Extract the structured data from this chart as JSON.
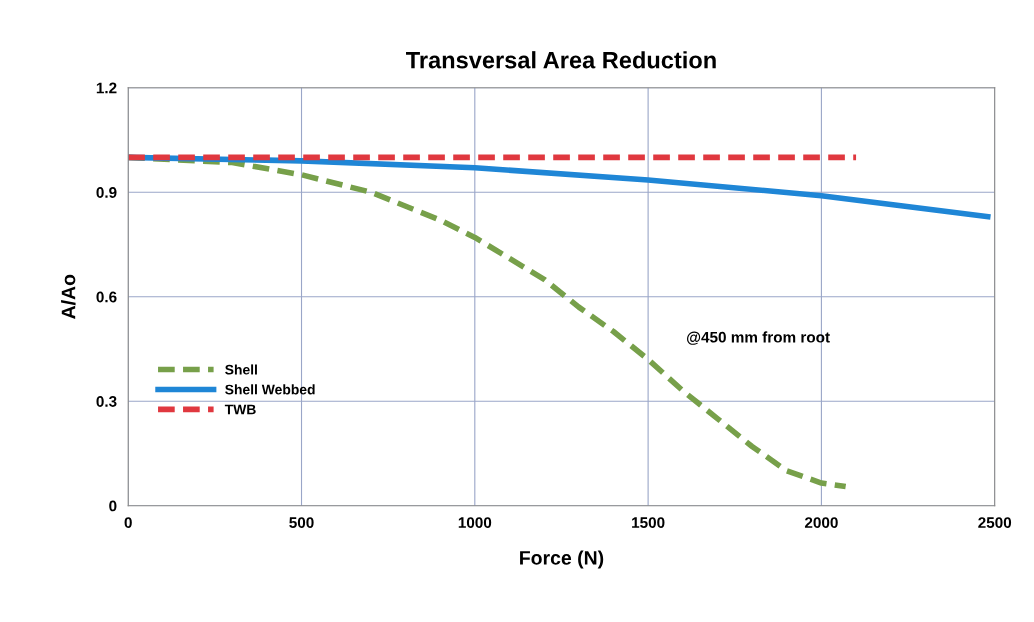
{
  "chart_data": {
    "type": "line",
    "title": "Transversal Area Reduction",
    "xlabel": "Force (N)",
    "ylabel": "A/Ao",
    "series": [
      {
        "name": "Shell",
        "color": "#77a04a",
        "line_style": "dashed",
        "x": [
          0,
          300,
          500,
          700,
          900,
          1000,
          1100,
          1200,
          1300,
          1400,
          1500,
          1600,
          1700,
          1800,
          1900,
          2000,
          2070
        ],
        "values": [
          1.0,
          0.985,
          0.95,
          0.9,
          0.82,
          0.77,
          0.71,
          0.65,
          0.57,
          0.5,
          0.42,
          0.33,
          0.25,
          0.17,
          0.1,
          0.065,
          0.055
        ]
      },
      {
        "name": "Shell Webbed",
        "color": "#1f86d6",
        "line_style": "solid",
        "x": [
          0,
          500,
          1000,
          1500,
          2000,
          2480
        ],
        "values": [
          1.0,
          0.99,
          0.97,
          0.935,
          0.89,
          0.83
        ]
      },
      {
        "name": "TWB",
        "color": "#e0383f",
        "line_style": "dashed",
        "x": [
          0,
          2100
        ],
        "values": [
          1.0,
          1.0
        ]
      }
    ],
    "annotations": [
      "@450 mm from root"
    ],
    "xlim": [
      0,
      2500
    ],
    "xticks": [
      0,
      500,
      1000,
      1500,
      2000,
      2500
    ],
    "ylim": [
      0,
      1.2
    ],
    "yticks": [
      0,
      0.3,
      0.6,
      0.9,
      1.2
    ],
    "grid": true,
    "legend": "left",
    "marker": "none"
  }
}
